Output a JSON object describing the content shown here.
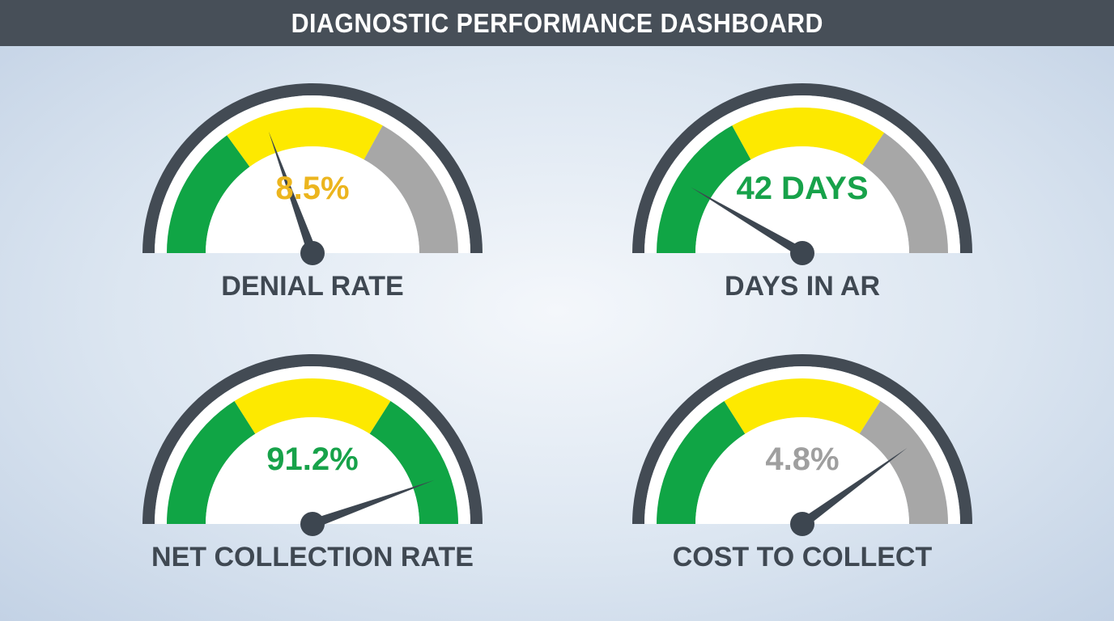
{
  "header": {
    "title": "DIAGNOSTIC PERFORMANCE DASHBOARD"
  },
  "colors": {
    "green": "#10a545",
    "yellow": "#fde900",
    "gray": "#a7a7a7",
    "outer_ring": "#434b54",
    "needle": "#3d4650",
    "value_yellow": "#ecb51e",
    "value_green": "#17a24a",
    "value_gray": "#9f9f9f"
  },
  "chart_data": [
    {
      "type": "gauge",
      "label": "DENIAL RATE",
      "value_text": "8.5%",
      "value_color": "#ecb51e",
      "needle_fraction": 0.39,
      "zones": [
        {
          "color": "green",
          "from": 0.0,
          "to": 0.3
        },
        {
          "color": "yellow",
          "from": 0.3,
          "to": 0.66
        },
        {
          "color": "gray",
          "from": 0.66,
          "to": 1.0
        }
      ]
    },
    {
      "type": "gauge",
      "label": "DAYS IN AR",
      "value_text": "42 DAYS",
      "value_color": "#17a24a",
      "needle_fraction": 0.17,
      "zones": [
        {
          "color": "green",
          "from": 0.0,
          "to": 0.34
        },
        {
          "color": "yellow",
          "from": 0.34,
          "to": 0.69
        },
        {
          "color": "gray",
          "from": 0.69,
          "to": 1.0
        }
      ]
    },
    {
      "type": "gauge",
      "label": "NET COLLECTION RATE",
      "value_text": "91.2%",
      "value_color": "#17a24a",
      "needle_fraction": 0.89,
      "zones": [
        {
          "color": "green",
          "from": 0.0,
          "to": 0.32
        },
        {
          "color": "yellow",
          "from": 0.32,
          "to": 0.68
        },
        {
          "color": "green",
          "from": 0.68,
          "to": 1.0
        }
      ]
    },
    {
      "type": "gauge",
      "label": "COST TO COLLECT",
      "value_text": "4.8%",
      "value_color": "#9f9f9f",
      "needle_fraction": 0.8,
      "zones": [
        {
          "color": "green",
          "from": 0.0,
          "to": 0.32
        },
        {
          "color": "yellow",
          "from": 0.32,
          "to": 0.68
        },
        {
          "color": "gray",
          "from": 0.68,
          "to": 1.0
        }
      ]
    }
  ]
}
